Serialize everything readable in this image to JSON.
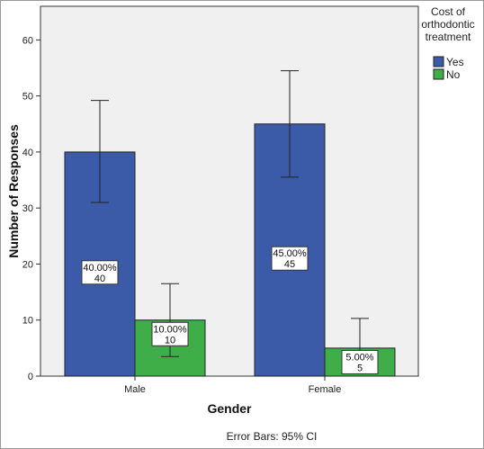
{
  "chart_data": {
    "type": "bar",
    "categories": [
      "Male",
      "Female"
    ],
    "xlabel": "Gender",
    "ylabel": "Number of Responses",
    "ylim": [
      0,
      66
    ],
    "yticks": [
      0,
      10,
      20,
      30,
      40,
      50,
      60
    ],
    "grid": false,
    "legend": {
      "title_lines": [
        "Cost of",
        "orthodontic",
        "treatment"
      ],
      "placement": "right"
    },
    "series": [
      {
        "name": "Yes",
        "color": "#3b5aa8",
        "values": [
          40,
          45
        ],
        "ci_low": [
          31,
          35.5
        ],
        "ci_high": [
          49.2,
          54.5
        ],
        "labels": [
          {
            "pct": "40.00%",
            "count": "40"
          },
          {
            "pct": "45.00%",
            "count": "45"
          }
        ]
      },
      {
        "name": "No",
        "color": "#3fae49",
        "values": [
          10,
          5
        ],
        "ci_low": [
          3.5,
          1.5
        ],
        "ci_high": [
          16.5,
          10.3
        ],
        "labels": [
          {
            "pct": "10.00%",
            "count": "10"
          },
          {
            "pct": "5.00%",
            "count": "5"
          }
        ]
      }
    ],
    "footnote": "Error Bars: 95% CI"
  }
}
